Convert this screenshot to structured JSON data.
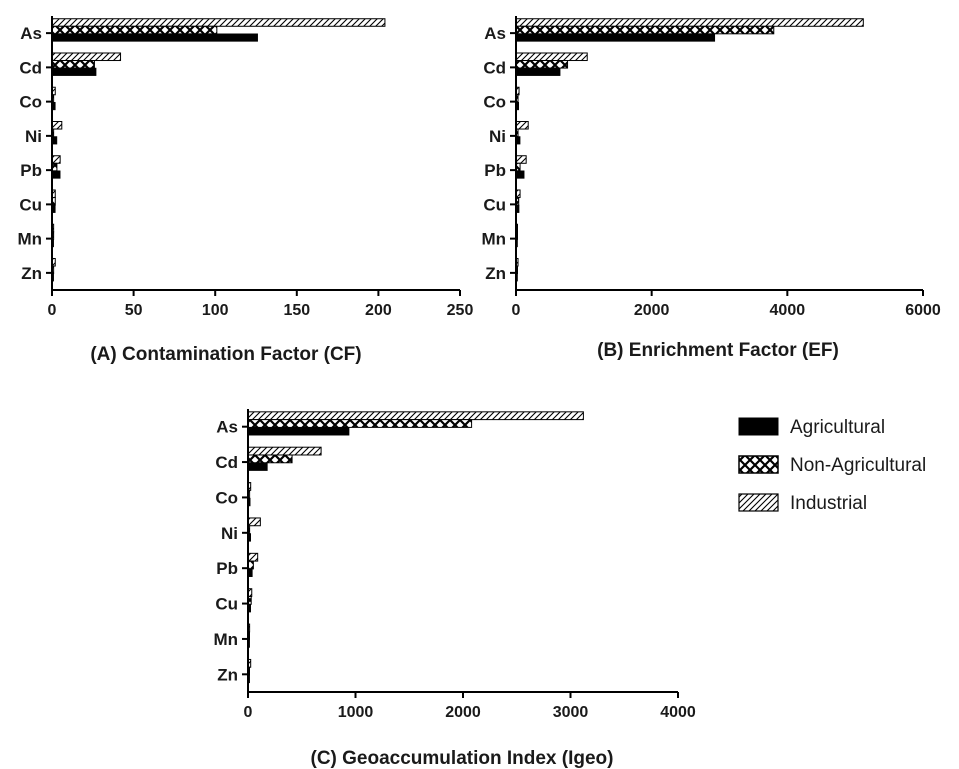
{
  "legend": [
    {
      "name": "Agricultural",
      "pattern": "solid"
    },
    {
      "name": "Non-Agricultural",
      "pattern": "checker"
    },
    {
      "name": "Industrial",
      "pattern": "hatch"
    }
  ],
  "colors": {
    "bar_fill": "#000000",
    "axis": "#000000",
    "text": "#1a1a1a"
  },
  "chart_data": [
    {
      "type": "bar",
      "orientation": "horizontal",
      "title": "(A) Contamination Factor (CF)",
      "categories": [
        "As",
        "Cd",
        "Co",
        "Ni",
        "Pb",
        "Cu",
        "Mn",
        "Zn"
      ],
      "xlim": [
        0,
        250
      ],
      "xticks": [
        0,
        50,
        100,
        150,
        200,
        250
      ],
      "series": [
        {
          "name": "Agricultural",
          "values": [
            126,
            27,
            2,
            3,
            5,
            2,
            1,
            1
          ]
        },
        {
          "name": "Non-Agricultural",
          "values": [
            101,
            26,
            1,
            1,
            3,
            2,
            1,
            1
          ]
        },
        {
          "name": "Industrial",
          "values": [
            204,
            42,
            2,
            6,
            5,
            2,
            1,
            2
          ]
        }
      ]
    },
    {
      "type": "bar",
      "orientation": "horizontal",
      "title": "(B) Enrichment Factor (EF)",
      "categories": [
        "As",
        "Cd",
        "Co",
        "Ni",
        "Pb",
        "Cu",
        "Mn",
        "Zn"
      ],
      "xlim": [
        0,
        6000
      ],
      "xticks": [
        0,
        2000,
        4000,
        6000
      ],
      "series": [
        {
          "name": "Agricultural",
          "values": [
            2930,
            650,
            40,
            60,
            120,
            45,
            20,
            20
          ]
        },
        {
          "name": "Non-Agricultural",
          "values": [
            3800,
            760,
            30,
            30,
            60,
            40,
            15,
            15
          ]
        },
        {
          "name": "Industrial",
          "values": [
            5120,
            1050,
            45,
            180,
            150,
            60,
            20,
            30
          ]
        }
      ]
    },
    {
      "type": "bar",
      "orientation": "horizontal",
      "title": "(C) Geoaccumulation Index (Igeo)",
      "categories": [
        "As",
        "Cd",
        "Co",
        "Ni",
        "Pb",
        "Cu",
        "Mn",
        "Zn"
      ],
      "xlim": [
        0,
        4000
      ],
      "xticks": [
        0,
        1000,
        2000,
        3000,
        4000
      ],
      "series": [
        {
          "name": "Agricultural",
          "values": [
            940,
            180,
            20,
            25,
            40,
            25,
            15,
            15
          ]
        },
        {
          "name": "Non-Agricultural",
          "values": [
            2080,
            410,
            15,
            15,
            50,
            30,
            10,
            10
          ]
        },
        {
          "name": "Industrial",
          "values": [
            3120,
            680,
            25,
            115,
            90,
            35,
            15,
            25
          ]
        }
      ]
    }
  ]
}
